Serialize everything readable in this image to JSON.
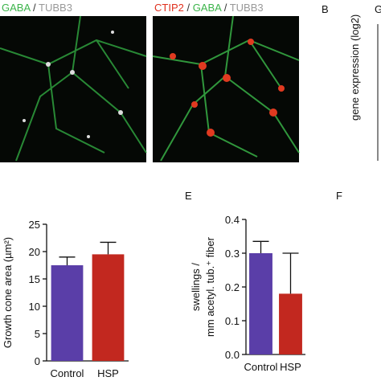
{
  "panels": [
    {
      "labels": [
        {
          "text": "GABA",
          "color": "#3cb44b"
        },
        {
          "text": " / ",
          "color": "#333333"
        },
        {
          "text": "TUBB3",
          "color": "#999999"
        }
      ]
    },
    {
      "labels": [
        {
          "text": "CTIP2",
          "color": "#e0301e"
        },
        {
          "text": " / ",
          "color": "#333333"
        },
        {
          "text": "GABA",
          "color": "#3cb44b"
        },
        {
          "text": " / ",
          "color": "#333333"
        },
        {
          "text": "TUBB3",
          "color": "#999999"
        }
      ]
    }
  ],
  "letters": {
    "b": "B",
    "g": "G",
    "e": "E",
    "f": "F"
  },
  "side_axis_label": "gene expression (log2)",
  "chart_data": [
    {
      "type": "bar",
      "ylabel": "Growth cone area (µm²)",
      "categories": [
        "Control",
        "HSP"
      ],
      "values": [
        17.5,
        19.5
      ],
      "errors": [
        1.5,
        2.2
      ],
      "colors": [
        "#5a3ea8",
        "#c2281f"
      ],
      "ylim": [
        0,
        25
      ],
      "yticks": [
        0,
        5,
        10,
        15,
        20,
        25
      ]
    },
    {
      "type": "bar",
      "ylabel": [
        "swellings /",
        "mm acetyl. tub.⁺ fiber"
      ],
      "categories": [
        "Control",
        "HSP"
      ],
      "values": [
        0.3,
        0.18
      ],
      "errors": [
        0.035,
        0.12
      ],
      "colors": [
        "#5a3ea8",
        "#c2281f"
      ],
      "ylim": [
        0,
        0.4
      ],
      "yticks": [
        {
          "value": 0,
          "label": "0.0"
        },
        {
          "value": 0.1,
          "label": "0.1"
        },
        {
          "value": 0.2,
          "label": "0.2"
        },
        {
          "value": 0.3,
          "label": "0.3"
        },
        {
          "value": 0.4,
          "label": "0.4"
        }
      ]
    }
  ]
}
